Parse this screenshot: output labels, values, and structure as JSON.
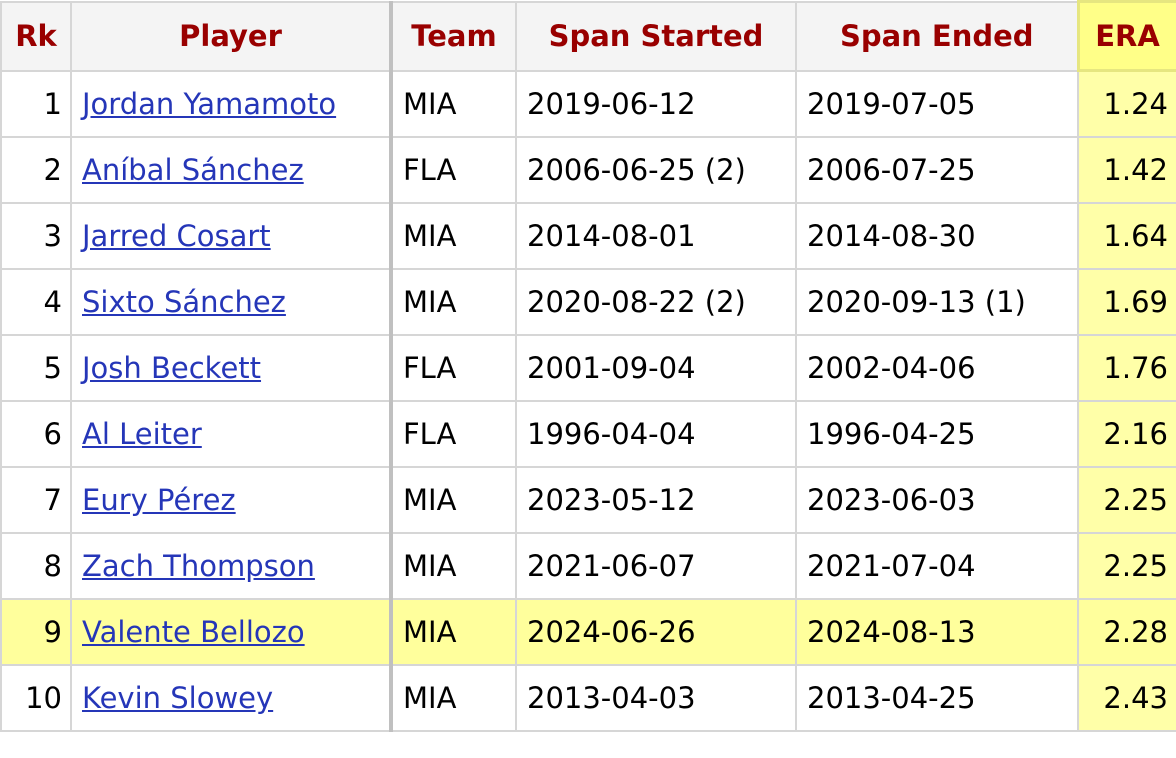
{
  "table": {
    "headers": [
      "Rk",
      "Player",
      "Team",
      "Span Started",
      "Span Ended",
      "ERA"
    ],
    "rows": [
      [
        1,
        "Jordan Yamamoto",
        "MIA",
        "2019-06-12",
        "2019-07-05",
        1.24
      ],
      [
        2,
        "Aníbal Sánchez",
        "FLA",
        "2006-06-25 (2)",
        "2006-07-25",
        1.42
      ],
      [
        3,
        "Jarred Cosart",
        "MIA",
        "2014-08-01",
        "2014-08-30",
        1.64
      ],
      [
        4,
        "Sixto Sánchez",
        "MIA",
        "2020-08-22 (2)",
        "2020-09-13 (1)",
        1.69
      ],
      [
        5,
        "Josh Beckett",
        "FLA",
        "2001-09-04",
        "2002-04-06",
        1.76
      ],
      [
        6,
        "Al Leiter",
        "FLA",
        "1996-04-04",
        "1996-04-25",
        2.16
      ],
      [
        7,
        "Eury Pérez",
        "MIA",
        "2023-05-12",
        "2023-06-03",
        2.25
      ],
      [
        8,
        "Zach Thompson",
        "MIA",
        "2021-06-07",
        "2021-07-04",
        2.25
      ],
      [
        9,
        "Valente Bellozo",
        "MIA",
        "2024-06-26",
        "2024-08-13",
        2.28
      ],
      [
        10,
        "Kevin Slowey",
        "MIA",
        "2013-04-03",
        "2013-04-25",
        2.43
      ]
    ]
  }
}
